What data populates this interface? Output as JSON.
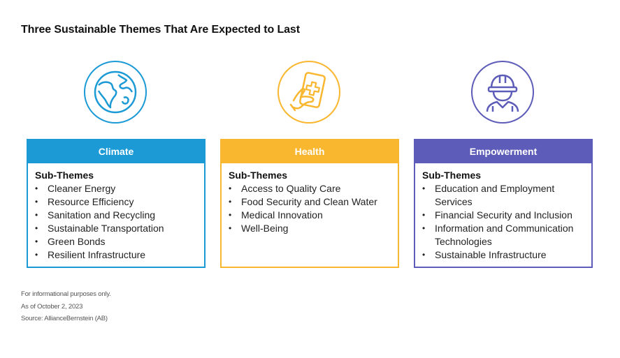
{
  "title": "Three Sustainable Themes That Are Expected to Last",
  "themes": [
    {
      "name": "Climate",
      "icon": "globe-icon",
      "color": "#1b9ad6",
      "subhead": "Sub-Themes",
      "items": [
        "Cleaner Energy",
        "Resource Efficiency",
        "Sanitation and Recycling",
        "Sustainable Transportation",
        "Green Bonds",
        "Resilient Infrastructure"
      ]
    },
    {
      "name": "Health",
      "icon": "medical-phone-icon",
      "color": "#f9b62f",
      "subhead": "Sub-Themes",
      "items": [
        "Access to Quality Care",
        "Food Security and Clean Water",
        "Medical Innovation",
        "Well-Being"
      ]
    },
    {
      "name": "Empowerment",
      "icon": "hard-hat-worker-icon",
      "color": "#5d5cb8",
      "subhead": "Sub-Themes",
      "items": [
        "Education and Employment Services",
        "Financial Security and Inclusion",
        "Information and Communication Technologies",
        "Sustainable Infrastructure"
      ]
    }
  ],
  "footnotes": [
    "For informational purposes only.",
    "As of October 2, 2023",
    "Source: AllianceBernstein (AB)"
  ]
}
